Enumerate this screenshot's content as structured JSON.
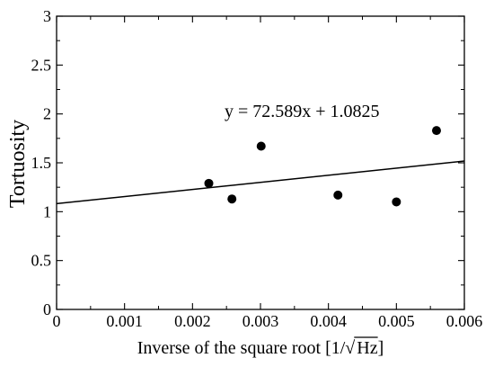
{
  "chart_data": {
    "type": "scatter",
    "xlabel_prefix": "Inverse of the square root [1/",
    "xlabel_radicand": "Hz",
    "xlabel_suffix": "]",
    "ylabel": "Tortuosity",
    "xlim": [
      0,
      0.006
    ],
    "ylim": [
      0,
      3
    ],
    "x_ticks": [
      0,
      0.001,
      0.002,
      0.003,
      0.004,
      0.005,
      0.006
    ],
    "x_tick_labels": [
      "0",
      "0.001",
      "0.002",
      "0.003",
      "0.004",
      "0.005",
      "0.006"
    ],
    "y_ticks": [
      0,
      0.5,
      1,
      1.5,
      2,
      2.5,
      3
    ],
    "y_tick_labels": [
      "0",
      "0.5",
      "1",
      "1.5",
      "2",
      "2.5",
      "3"
    ],
    "grid": false,
    "points": [
      {
        "x": 0.00224,
        "y": 1.29
      },
      {
        "x": 0.00258,
        "y": 1.13
      },
      {
        "x": 0.00301,
        "y": 1.67
      },
      {
        "x": 0.00414,
        "y": 1.17
      },
      {
        "x": 0.005,
        "y": 1.1
      },
      {
        "x": 0.00559,
        "y": 1.83
      }
    ],
    "trendline": {
      "slope": 72.589,
      "intercept": 1.0825,
      "equation": "y = 72.589x + 1.0825"
    },
    "marker_color": "#000000",
    "line_color": "#000000"
  }
}
